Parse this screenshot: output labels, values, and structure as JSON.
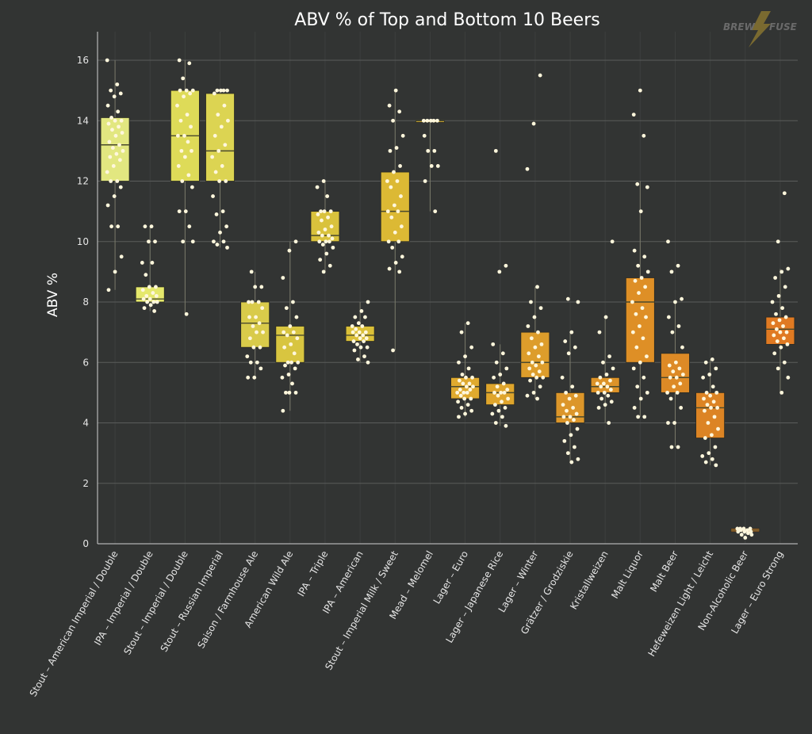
{
  "chart_data": {
    "type": "box",
    "title": "ABV % of Top and Bottom 10 Beers",
    "xlabel": "",
    "ylabel": "ABV %",
    "ylim": [
      0,
      16.5
    ],
    "yticks": [
      0,
      2,
      4,
      6,
      8,
      10,
      12,
      14,
      16
    ],
    "grid": true,
    "logo_text": [
      "BREW",
      "FUSE"
    ],
    "colors": {
      "background": "#323433",
      "grid": "#5a5c5b",
      "point": "#fff7dc",
      "median": "#4a4a2e",
      "whisker": "#7a7a6a"
    },
    "categories": [
      {
        "name": "Stout – American Imperial / Double",
        "color": "#e2e780",
        "q1": 12.0,
        "median": 13.2,
        "q3": 14.1,
        "whisker_low": 8.4,
        "whisker_high": 16.0,
        "points": [
          16.0,
          15.2,
          15.0,
          14.9,
          14.8,
          14.5,
          14.3,
          14.1,
          14.0,
          14.0,
          13.9,
          13.8,
          13.7,
          13.6,
          13.5,
          13.3,
          13.2,
          13.1,
          13.0,
          12.9,
          12.8,
          12.7,
          12.5,
          12.3,
          12.0,
          12.0,
          11.8,
          11.5,
          11.2,
          10.5,
          10.5,
          9.5,
          9.0,
          8.4
        ]
      },
      {
        "name": "IPA – Imperial / Double",
        "color": "#e5e86c",
        "q1": 8.0,
        "median": 8.1,
        "q3": 8.5,
        "whisker_low": 7.7,
        "whisker_high": 10.5,
        "points": [
          10.5,
          10.5,
          10.0,
          10.0,
          9.3,
          9.3,
          8.9,
          8.5,
          8.5,
          8.4,
          8.3,
          8.2,
          8.2,
          8.1,
          8.1,
          8.0,
          8.0,
          8.0,
          7.9,
          7.8,
          7.7
        ]
      },
      {
        "name": "Stout – Imperial / Double",
        "color": "#dedb58",
        "q1": 12.0,
        "median": 13.5,
        "q3": 15.0,
        "whisker_low": 7.6,
        "whisker_high": 16.0,
        "points": [
          16.0,
          15.9,
          15.4,
          15.0,
          15.0,
          15.0,
          14.9,
          14.8,
          14.5,
          14.2,
          14.0,
          13.8,
          13.5,
          13.5,
          13.3,
          13.0,
          13.0,
          12.8,
          12.5,
          12.2,
          12.0,
          11.8,
          11.0,
          11.0,
          10.5,
          10.0,
          10.0,
          7.6
        ]
      },
      {
        "name": "Stout – Russian Imperial",
        "color": "#dcd452",
        "q1": 12.0,
        "median": 13.0,
        "q3": 14.9,
        "whisker_low": 9.8,
        "whisker_high": 15.0,
        "points": [
          15.0,
          15.0,
          15.0,
          15.0,
          14.9,
          14.5,
          14.2,
          14.0,
          13.8,
          13.5,
          13.2,
          13.0,
          12.8,
          12.5,
          12.3,
          12.0,
          12.0,
          11.5,
          11.0,
          10.9,
          10.5,
          10.3,
          10.0,
          10.0,
          9.9,
          9.8
        ]
      },
      {
        "name": "Saison / Farmhouse Ale",
        "color": "#d9cb4a",
        "q1": 6.5,
        "median": 7.3,
        "q3": 8.0,
        "whisker_low": 5.5,
        "whisker_high": 9.0,
        "points": [
          9.0,
          8.5,
          8.5,
          8.0,
          8.0,
          8.0,
          7.8,
          7.5,
          7.5,
          7.3,
          7.2,
          7.0,
          7.0,
          6.8,
          6.5,
          6.5,
          6.2,
          6.0,
          6.0,
          5.8,
          5.5,
          5.5
        ]
      },
      {
        "name": "American Wild Ale",
        "color": "#d8c540",
        "q1": 6.0,
        "median": 6.9,
        "q3": 7.2,
        "whisker_low": 4.4,
        "whisker_high": 10.0,
        "points": [
          10.0,
          9.7,
          8.8,
          8.0,
          7.8,
          7.5,
          7.2,
          7.0,
          7.0,
          6.9,
          6.8,
          6.6,
          6.5,
          6.3,
          6.0,
          6.0,
          6.0,
          5.9,
          5.8,
          5.6,
          5.5,
          5.3,
          5.0,
          5.0,
          5.0,
          4.4
        ]
      },
      {
        "name": "IPA – Triple",
        "color": "#d9c23c",
        "q1": 10.0,
        "median": 10.2,
        "q3": 11.0,
        "whisker_low": 9.0,
        "whisker_high": 12.0,
        "points": [
          12.0,
          11.8,
          11.5,
          11.0,
          11.0,
          11.0,
          10.9,
          10.8,
          10.7,
          10.5,
          10.4,
          10.3,
          10.2,
          10.2,
          10.1,
          10.0,
          10.0,
          10.0,
          9.9,
          9.8,
          9.6,
          9.4,
          9.2,
          9.0
        ]
      },
      {
        "name": "IPA – American",
        "color": "#dbc038",
        "q1": 6.7,
        "median": 6.9,
        "q3": 7.2,
        "whisker_low": 6.0,
        "whisker_high": 8.0,
        "points": [
          8.0,
          7.7,
          7.5,
          7.5,
          7.3,
          7.2,
          7.2,
          7.1,
          7.0,
          7.0,
          7.0,
          6.9,
          6.9,
          6.8,
          6.8,
          6.7,
          6.7,
          6.6,
          6.5,
          6.5,
          6.4,
          6.2,
          6.1,
          6.0
        ]
      },
      {
        "name": "Stout – Imperial Milk / Sweet",
        "color": "#dcb934",
        "q1": 10.0,
        "median": 11.0,
        "q3": 12.3,
        "whisker_low": 6.4,
        "whisker_high": 15.0,
        "points": [
          15.0,
          14.5,
          14.3,
          14.0,
          13.5,
          13.1,
          13.0,
          12.5,
          12.3,
          12.0,
          12.0,
          11.8,
          11.5,
          11.2,
          11.0,
          11.0,
          10.8,
          10.5,
          10.3,
          10.0,
          10.0,
          9.8,
          9.5,
          9.3,
          9.1,
          9.0,
          6.4
        ]
      },
      {
        "name": "Mead – Melomel",
        "color": "#d9b030",
        "q1": 14.0,
        "median": 14.0,
        "q3": 14.0,
        "whisker_low": 11.0,
        "whisker_high": 14.0,
        "points": [
          14.0,
          14.0,
          14.0,
          14.0,
          14.0,
          13.5,
          13.0,
          13.0,
          12.5,
          12.5,
          12.0,
          11.0
        ]
      },
      {
        "name": "Lager – Euro",
        "color": "#dfaa2e",
        "q1": 4.8,
        "median": 5.2,
        "q3": 5.5,
        "whisker_low": 4.2,
        "whisker_high": 7.3,
        "points": [
          7.3,
          7.0,
          6.5,
          6.2,
          6.0,
          5.8,
          5.6,
          5.5,
          5.5,
          5.4,
          5.3,
          5.3,
          5.2,
          5.2,
          5.1,
          5.1,
          5.0,
          5.0,
          5.0,
          4.9,
          4.8,
          4.8,
          4.7,
          4.6,
          4.5,
          4.4,
          4.3,
          4.2
        ]
      },
      {
        "name": "Lager – Japanese Rice",
        "color": "#dfa52c",
        "q1": 4.6,
        "median": 5.0,
        "q3": 5.3,
        "whisker_low": 3.9,
        "whisker_high": 6.6,
        "points": [
          13.0,
          9.2,
          9.0,
          6.6,
          6.3,
          6.0,
          5.8,
          5.6,
          5.5,
          5.3,
          5.2,
          5.1,
          5.0,
          5.0,
          5.0,
          4.9,
          4.8,
          4.7,
          4.6,
          4.5,
          4.4,
          4.3,
          4.2,
          4.0,
          3.9
        ]
      },
      {
        "name": "Lager – Winter",
        "color": "#dd9d2b",
        "q1": 5.5,
        "median": 6.0,
        "q3": 7.0,
        "whisker_low": 4.8,
        "whisker_high": 8.5,
        "points": [
          15.5,
          13.9,
          12.4,
          8.5,
          8.0,
          7.8,
          7.5,
          7.2,
          7.0,
          6.8,
          6.6,
          6.5,
          6.3,
          6.2,
          6.0,
          6.0,
          5.9,
          5.8,
          5.7,
          5.6,
          5.5,
          5.5,
          5.4,
          5.2,
          5.0,
          4.9,
          4.8
        ]
      },
      {
        "name": "Grätzer / Grodziskie",
        "color": "#dc962a",
        "q1": 4.0,
        "median": 4.2,
        "q3": 5.0,
        "whisker_low": 2.7,
        "whisker_high": 7.0,
        "points": [
          8.1,
          8.0,
          7.0,
          6.7,
          6.5,
          6.3,
          5.5,
          5.2,
          5.0,
          4.9,
          4.8,
          4.6,
          4.5,
          4.4,
          4.3,
          4.2,
          4.2,
          4.1,
          4.0,
          3.8,
          3.6,
          3.4,
          3.2,
          3.0,
          2.8,
          2.7
        ]
      },
      {
        "name": "Kristallweizen",
        "color": "#dd9328",
        "q1": 5.0,
        "median": 5.2,
        "q3": 5.5,
        "whisker_low": 4.0,
        "whisker_high": 7.5,
        "points": [
          10.0,
          7.5,
          7.0,
          6.2,
          6.0,
          5.8,
          5.6,
          5.5,
          5.4,
          5.3,
          5.3,
          5.2,
          5.2,
          5.1,
          5.0,
          5.0,
          4.9,
          4.8,
          4.7,
          4.6,
          4.5,
          4.0
        ]
      },
      {
        "name": "Malt Liquor",
        "color": "#de8f26",
        "q1": 6.0,
        "median": 8.0,
        "q3": 8.8,
        "whisker_low": 4.2,
        "whisker_high": 12.0,
        "points": [
          15.0,
          14.2,
          13.5,
          11.9,
          11.8,
          11.0,
          9.7,
          9.5,
          9.2,
          9.0,
          8.8,
          8.7,
          8.5,
          8.3,
          8.0,
          7.8,
          7.6,
          7.5,
          7.2,
          7.0,
          6.8,
          6.5,
          6.2,
          6.0,
          5.8,
          5.5,
          5.2,
          5.0,
          4.8,
          4.5,
          4.2,
          4.2
        ]
      },
      {
        "name": "Malt Beer",
        "color": "#dd8a26",
        "q1": 5.0,
        "median": 5.5,
        "q3": 6.3,
        "whisker_low": 3.2,
        "whisker_high": 8.0,
        "points": [
          10.0,
          9.2,
          9.0,
          8.1,
          8.0,
          7.5,
          7.2,
          7.0,
          6.5,
          6.0,
          5.9,
          5.8,
          5.7,
          5.6,
          5.5,
          5.5,
          5.3,
          5.2,
          5.0,
          5.0,
          4.8,
          4.5,
          4.0,
          4.0,
          3.2,
          3.2
        ]
      },
      {
        "name": "Hefeweizen Light / Leicht",
        "color": "#dc8424",
        "q1": 3.5,
        "median": 4.5,
        "q3": 5.0,
        "whisker_low": 2.6,
        "whisker_high": 6.1,
        "points": [
          6.1,
          6.0,
          5.8,
          5.6,
          5.5,
          5.2,
          5.0,
          5.0,
          4.9,
          4.8,
          4.7,
          4.6,
          4.5,
          4.5,
          4.4,
          4.2,
          4.0,
          3.8,
          3.6,
          3.5,
          3.2,
          3.0,
          2.9,
          2.8,
          2.7,
          2.6
        ]
      },
      {
        "name": "Non-Alcoholic Beer",
        "color": "#de7e22",
        "q1": 0.4,
        "median": 0.45,
        "q3": 0.5,
        "whisker_low": 0.2,
        "whisker_high": 0.5,
        "points": [
          0.5,
          0.5,
          0.5,
          0.5,
          0.45,
          0.45,
          0.4,
          0.4,
          0.4,
          0.35,
          0.3,
          0.3,
          0.2
        ]
      },
      {
        "name": "Lager – Euro Strong",
        "color": "#e07a22",
        "q1": 6.6,
        "median": 7.1,
        "q3": 7.5,
        "whisker_low": 5.0,
        "whisker_high": 9.1,
        "points": [
          11.6,
          10.0,
          9.1,
          9.0,
          8.8,
          8.5,
          8.2,
          8.0,
          7.8,
          7.6,
          7.5,
          7.4,
          7.3,
          7.2,
          7.1,
          7.0,
          7.0,
          6.9,
          6.8,
          6.7,
          6.6,
          6.5,
          6.3,
          6.0,
          5.8,
          5.5,
          5.0
        ]
      }
    ]
  }
}
